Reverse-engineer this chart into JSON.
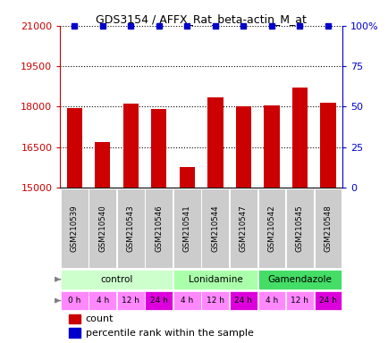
{
  "title": "GDS3154 / AFFX_Rat_beta-actin_M_at",
  "samples": [
    "GSM210539",
    "GSM210540",
    "GSM210543",
    "GSM210546",
    "GSM210541",
    "GSM210544",
    "GSM210547",
    "GSM210542",
    "GSM210545",
    "GSM210548"
  ],
  "counts": [
    17950,
    16700,
    18100,
    17900,
    15750,
    18350,
    18000,
    18050,
    18700,
    18150
  ],
  "percentiles": [
    99,
    99,
    99,
    99,
    99,
    99,
    99,
    99,
    99,
    99
  ],
  "ylim_left": [
    15000,
    21000
  ],
  "ylim_right": [
    0,
    100
  ],
  "yticks_left": [
    15000,
    16500,
    18000,
    19500,
    21000
  ],
  "yticks_right": [
    0,
    25,
    50,
    75,
    100
  ],
  "bar_color": "#cc0000",
  "dot_color": "#0000cc",
  "agent_groups": [
    {
      "label": "control",
      "start": 0,
      "end": 3,
      "color": "#ccffcc"
    },
    {
      "label": "Lonidamine",
      "start": 4,
      "end": 6,
      "color": "#aaffaa"
    },
    {
      "label": "Gamendazole",
      "start": 7,
      "end": 9,
      "color": "#44dd66"
    }
  ],
  "time_labels": [
    "0 h",
    "4 h",
    "12 h",
    "24 h",
    "4 h",
    "12 h",
    "24 h",
    "4 h",
    "12 h",
    "24 h"
  ],
  "time_colors": [
    "#ff88ff",
    "#ff88ff",
    "#ff88ff",
    "#dd00dd",
    "#ff88ff",
    "#ff88ff",
    "#dd00dd",
    "#ff88ff",
    "#ff88ff",
    "#dd00dd"
  ],
  "legend_count_color": "#cc0000",
  "legend_pct_color": "#0000cc",
  "sample_box_color": "#cccccc",
  "bg_color": "#ffffff"
}
